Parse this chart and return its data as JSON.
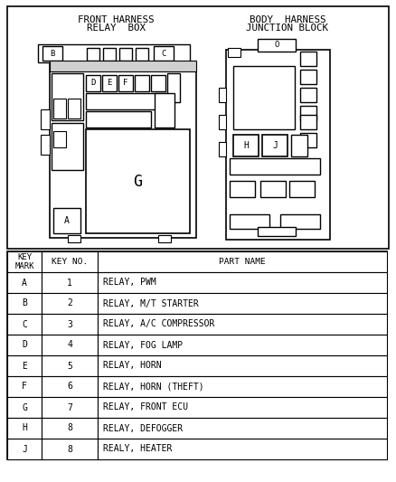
{
  "bg_color": "#ffffff",
  "line_color": "#000000",
  "text_color": "#000000",
  "title_left_line1": "FRONT HARNESS",
  "title_left_line2": "RELAY  BOX",
  "title_right_line1": "BODY  HARNESS",
  "title_right_line2": "JUNCTION BLOCK",
  "table_headers": [
    "KEY\nMARK",
    "KEY NO.",
    "PART NAME"
  ],
  "col_keys": [
    "A",
    "B",
    "C",
    "D",
    "E",
    "F",
    "G",
    "H",
    "J"
  ],
  "col_nos": [
    "1",
    "2",
    "3",
    "4",
    "5",
    "6",
    "7",
    "8",
    "8"
  ],
  "col_parts": [
    "RELAY, PWM",
    "RELAY, M/T STARTER",
    "RELAY, A/C COMPRESSOR",
    "RELAY, FOG LAMP",
    "RELAY, HORN",
    "RELAY, HORN (THEFT)",
    "RELAY, FRONT ECU",
    "RELAY, DEFOGGER",
    "REALY, HEATER"
  ]
}
